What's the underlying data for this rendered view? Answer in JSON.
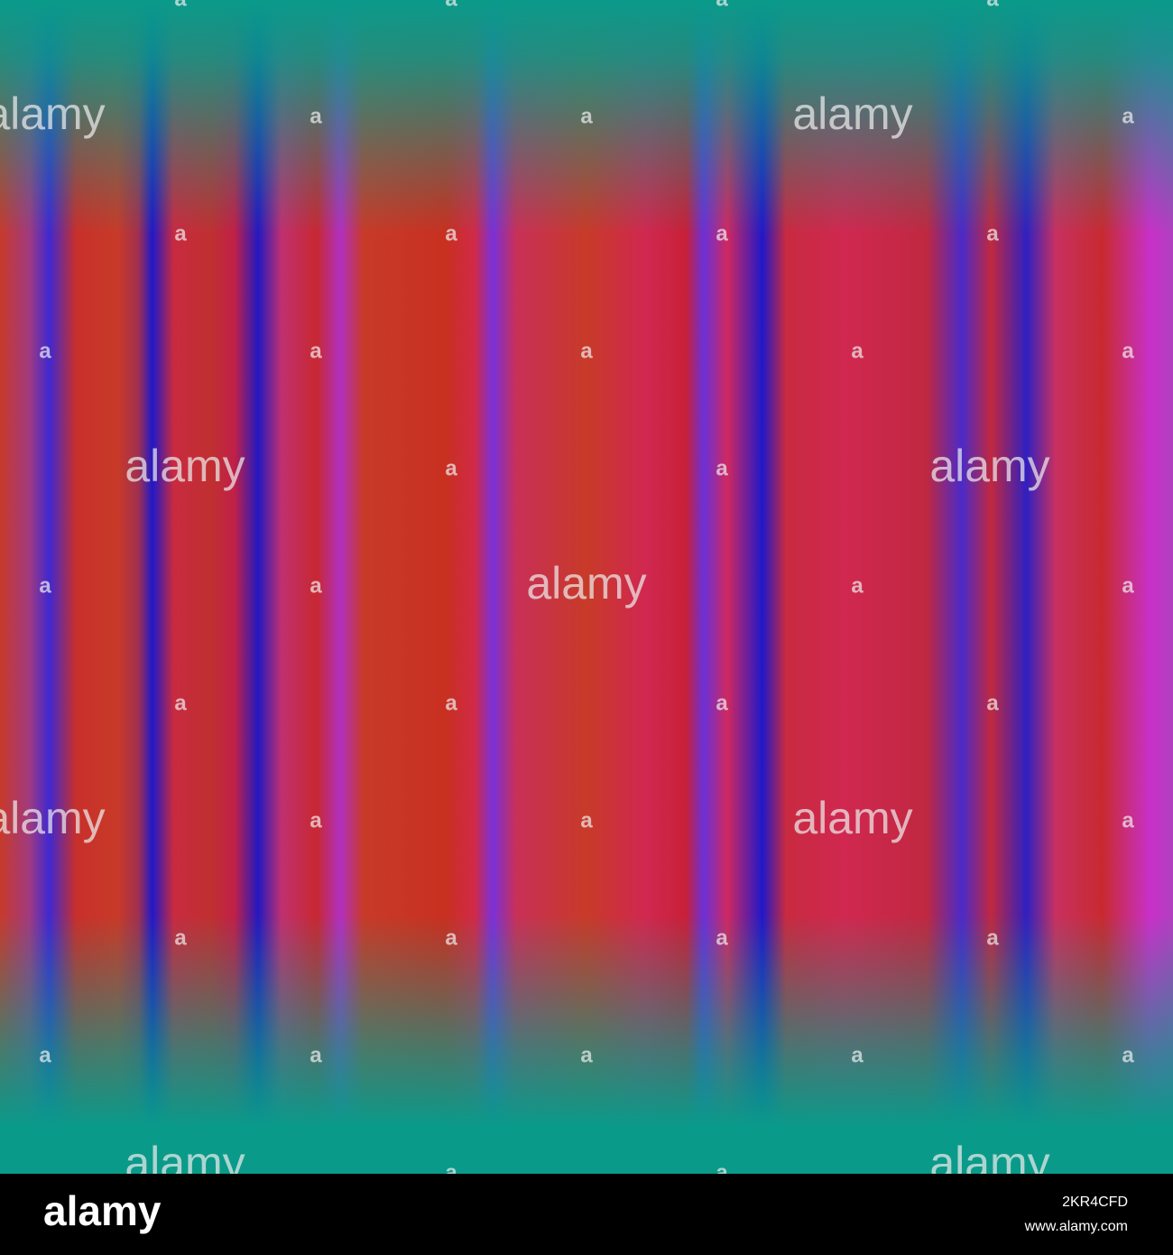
{
  "watermark": {
    "logo": "alamy",
    "mark": "a"
  },
  "footer": {
    "logo": "alamy",
    "image_id": "2KR4CFD",
    "url": "www.alamy.com"
  }
}
